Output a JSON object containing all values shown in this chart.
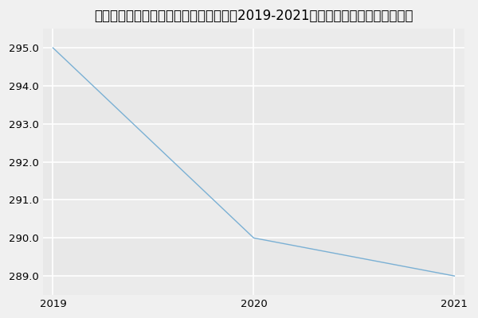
{
  "title": "内蒙古医科大学第一临床医学院内科学（2019-2021历年复试）研究生录取分数线",
  "x": [
    2019,
    2020,
    2021
  ],
  "y": [
    295,
    290,
    289
  ],
  "line_color": "#7ab0d4",
  "background_color": "#f0f0f0",
  "plot_bg_color": "#ebebeb",
  "ylim_min": 288.5,
  "ylim_max": 295.5,
  "yticks": [
    289.0,
    290.0,
    291.0,
    292.0,
    293.0,
    294.0,
    295.0
  ],
  "xticks": [
    2019,
    2020,
    2021
  ],
  "title_fontsize": 12,
  "tick_fontsize": 9.5,
  "grid_color": "#ffffff",
  "grid_linewidth": 1.2
}
